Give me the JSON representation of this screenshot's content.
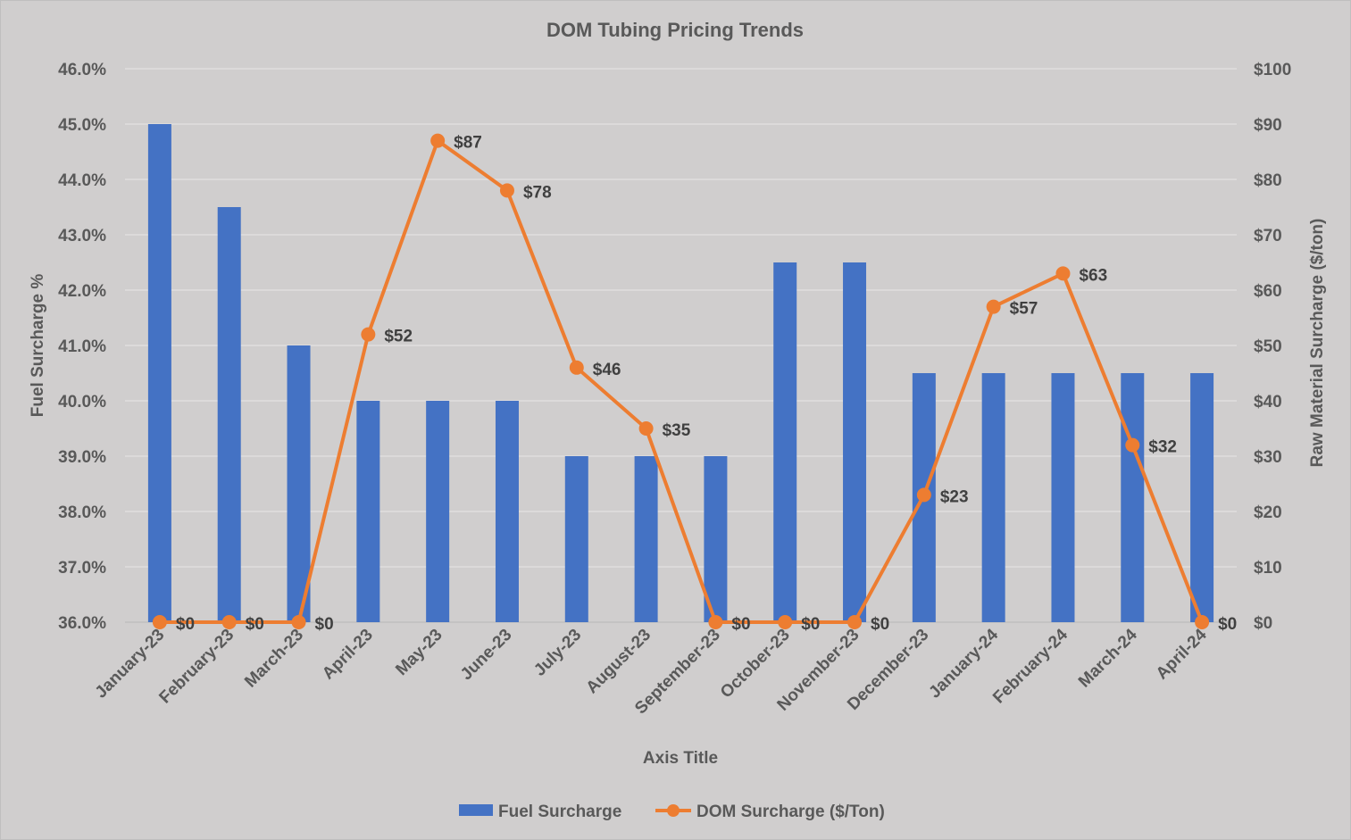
{
  "chart_data": {
    "type": "bar+line",
    "title": "DOM Tubing Pricing Trends",
    "xlabel": "Axis Title",
    "ylabel": "Fuel Surcharge %",
    "y2label": "Raw Material Surcharge ($/ton)",
    "ylim": [
      36,
      46
    ],
    "y2lim": [
      0,
      100
    ],
    "yticks": [
      "36.0%",
      "37.0%",
      "38.0%",
      "39.0%",
      "40.0%",
      "41.0%",
      "42.0%",
      "43.0%",
      "44.0%",
      "45.0%",
      "46.0%"
    ],
    "y2ticks": [
      "$0",
      "$10",
      "$20",
      "$30",
      "$40",
      "$50",
      "$60",
      "$70",
      "$80",
      "$90",
      "$100"
    ],
    "grid": true,
    "legend_position": "bottom",
    "categories": [
      "January-23",
      "February-23",
      "March-23",
      "April-23",
      "May-23",
      "June-23",
      "July-23",
      "August-23",
      "September-23",
      "October-23",
      "November-23",
      "December-23",
      "January-24",
      "February-24",
      "March-24",
      "April-24"
    ],
    "series": [
      {
        "name": "Fuel Surcharge",
        "type": "bar",
        "axis": "left",
        "color": "#4472c4",
        "values": [
          45.0,
          43.5,
          41.0,
          40.0,
          40.0,
          40.0,
          39.0,
          39.0,
          39.0,
          42.5,
          42.5,
          40.5,
          40.5,
          40.5,
          40.5,
          40.5
        ]
      },
      {
        "name": "DOM Surcharge ($/Ton)",
        "type": "line",
        "axis": "right",
        "color": "#ed7d31",
        "values": [
          0,
          0,
          0,
          52,
          87,
          78,
          46,
          35,
          0,
          0,
          0,
          23,
          57,
          63,
          32,
          0
        ],
        "data_labels": [
          "$0",
          "$0",
          "$0",
          "$52",
          "$87",
          "$78",
          "$46",
          "$35",
          "$0",
          "$0",
          "$0",
          "$23",
          "$57",
          "$63",
          "$32",
          "$0"
        ]
      }
    ]
  }
}
